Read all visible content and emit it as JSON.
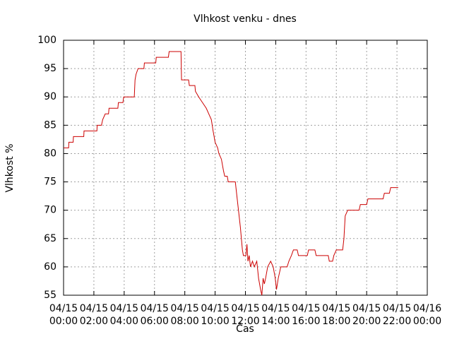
{
  "chart_data": {
    "type": "line",
    "title": "Vlhkost venku - dnes",
    "x_label": "Čas",
    "y_label": "Vlhkost %",
    "x": [
      "04/15 00:00",
      "04/15 00:20",
      "04/15 00:21",
      "04/15 00:38",
      "04/15 00:39",
      "04/15 01:20",
      "04/15 01:21",
      "04/15 02:12",
      "04/15 02:13",
      "04/15 02:30",
      "04/15 02:35",
      "04/15 02:45",
      "04/15 02:58",
      "04/15 03:00",
      "04/15 03:35",
      "04/15 03:37",
      "04/15 03:55",
      "04/15 03:58",
      "04/15 04:40",
      "04/15 04:43",
      "04/15 04:47",
      "04/15 04:55",
      "04/15 05:18",
      "04/15 05:20",
      "04/15 06:05",
      "04/15 06:07",
      "04/15 06:55",
      "04/15 06:58",
      "04/15 07:45",
      "04/15 07:47",
      "04/15 08:15",
      "04/15 08:18",
      "04/15 08:40",
      "04/15 08:42",
      "04/15 08:55",
      "04/15 09:10",
      "04/15 09:25",
      "04/15 09:35",
      "04/15 09:45",
      "04/15 09:52",
      "04/15 10:00",
      "04/15 10:10",
      "04/15 10:15",
      "04/15 10:25",
      "04/15 10:33",
      "04/15 10:38",
      "04/15 10:48",
      "04/15 10:52",
      "04/15 11:20",
      "04/15 11:30",
      "04/15 11:40",
      "04/15 11:48",
      "04/15 11:52",
      "04/15 12:02",
      "04/15 12:06",
      "04/15 12:10",
      "04/15 12:15",
      "04/15 12:20",
      "04/15 12:28",
      "04/15 12:35",
      "04/15 12:45",
      "04/15 12:52",
      "04/15 13:00",
      "04/15 13:05",
      "04/15 13:10",
      "04/15 13:15",
      "04/15 13:20",
      "04/15 13:28",
      "04/15 13:40",
      "04/15 13:50",
      "04/15 13:58",
      "04/15 14:03",
      "04/15 14:10",
      "04/15 14:20",
      "04/15 14:45",
      "04/15 14:52",
      "04/15 15:02",
      "04/15 15:10",
      "04/15 15:25",
      "04/15 15:30",
      "04/15 16:05",
      "04/15 16:10",
      "04/15 16:35",
      "04/15 16:40",
      "04/15 17:28",
      "04/15 17:32",
      "04/15 17:45",
      "04/15 17:50",
      "04/15 18:00",
      "04/15 18:25",
      "04/15 18:30",
      "04/15 18:35",
      "04/15 18:45",
      "04/15 19:30",
      "04/15 19:35",
      "04/15 20:00",
      "04/15 20:05",
      "04/15 21:05",
      "04/15 21:10",
      "04/15 21:30",
      "04/15 21:35",
      "04/15 22:05"
    ],
    "values": [
      81,
      81,
      82,
      82,
      83,
      83,
      84,
      84,
      85,
      85,
      86,
      87,
      87,
      88,
      88,
      89,
      89,
      90,
      90,
      93,
      94,
      95,
      95,
      96,
      96,
      97,
      97,
      98,
      98,
      93,
      93,
      92,
      92,
      91,
      90,
      89,
      88,
      87,
      86,
      84,
      82,
      81,
      80,
      79,
      77,
      76,
      76,
      75,
      75,
      71,
      67,
      63,
      62,
      62,
      64,
      61,
      62,
      60,
      61,
      60,
      61,
      58,
      56,
      55,
      58,
      57,
      58,
      60,
      61,
      60,
      58,
      56,
      58,
      60,
      60,
      61,
      62,
      63,
      63,
      62,
      62,
      63,
      63,
      62,
      62,
      61,
      61,
      62,
      63,
      63,
      65,
      69,
      70,
      70,
      71,
      71,
      72,
      72,
      73,
      73,
      74,
      74
    ],
    "color": "#cc0000",
    "xlim": [
      "04/15 00:00",
      "04/16 00:00"
    ],
    "xticks": [
      "04/15 00:00",
      "04/15 02:00",
      "04/15 04:00",
      "04/15 06:00",
      "04/15 08:00",
      "04/15 10:00",
      "04/15 12:00",
      "04/15 14:00",
      "04/15 16:00",
      "04/15 18:00",
      "04/15 20:00",
      "04/15 22:00",
      "04/16 00:00"
    ],
    "ylim": [
      55,
      100
    ],
    "yticks": [
      55,
      60,
      65,
      70,
      75,
      80,
      85,
      90,
      95,
      100
    ],
    "grid": true
  }
}
